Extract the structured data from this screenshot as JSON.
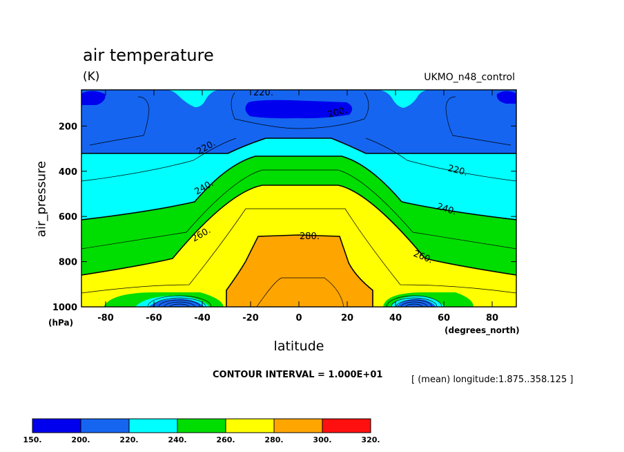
{
  "header": {
    "title": "air temperature",
    "units": "(K)",
    "dataset": "UKMO_n48_control"
  },
  "axes": {
    "ylabel": "air_pressure",
    "yunit": "(hPa)",
    "xlabel": "latitude",
    "xunit": "(degrees_north)"
  },
  "footer": {
    "contour_interval": "CONTOUR INTERVAL = 1.000E+01",
    "mean_note": "[ (mean) longitude:1.875..358.125 ]"
  },
  "colors": {
    "c150": "#0000ee",
    "c200": "#1565f0",
    "c220": "#00ffff",
    "c240": "#00dd00",
    "c260": "#ffff00",
    "c280": "#ffa500",
    "c300": "#ff1010"
  },
  "chart_data": {
    "type": "contour",
    "title": "air temperature",
    "units": "K",
    "xlabel": "latitude",
    "ylabel": "air_pressure",
    "xlim": [
      -90,
      90
    ],
    "ylim": [
      1000,
      40
    ],
    "xticks": [
      "-80",
      "-60",
      "-40",
      "-20",
      "0",
      "20",
      "40",
      "60",
      "80"
    ],
    "yticks": [
      "200",
      "400",
      "600",
      "800",
      "1000"
    ],
    "contour_interval": 10,
    "contour_labels": [
      "220.",
      "200.",
      "220.",
      "220.",
      "240.",
      "240.",
      "260.",
      "280.",
      "260."
    ],
    "colorbar": {
      "levels": [
        "150.",
        "200.",
        "220.",
        "240.",
        "260.",
        "280.",
        "300.",
        "320."
      ],
      "colors": [
        "#0000ee",
        "#1565f0",
        "#00ffff",
        "#00dd00",
        "#ffff00",
        "#ffa500",
        "#ff1010"
      ]
    }
  }
}
